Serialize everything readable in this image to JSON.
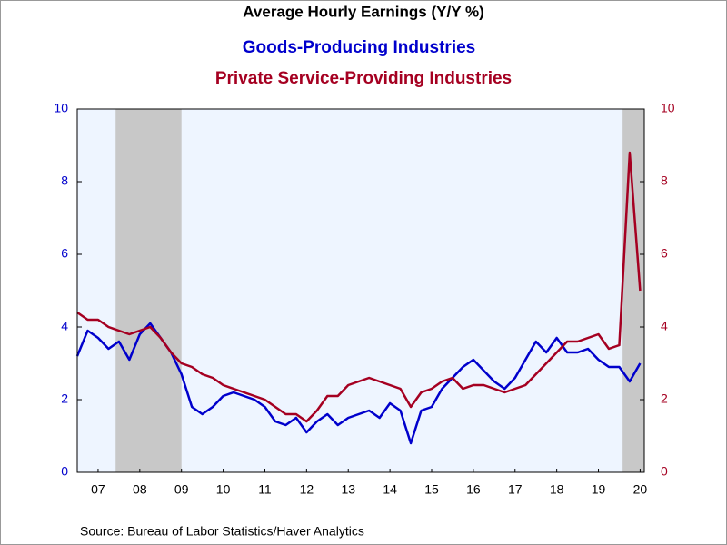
{
  "chart_data": {
    "type": "line",
    "title": "Average Hourly Earnings (Y/Y %)",
    "source": "Source:  Bureau of Labor Statistics/Haver Analytics",
    "x": [
      7,
      7.25,
      7.5,
      7.75,
      8,
      8.25,
      8.5,
      8.75,
      9,
      9.25,
      9.5,
      9.75,
      10,
      10.25,
      10.5,
      10.75,
      11,
      11.25,
      11.5,
      11.75,
      12,
      12.25,
      12.5,
      12.75,
      13,
      13.25,
      13.5,
      13.75,
      14,
      14.25,
      14.5,
      14.75,
      15,
      15.25,
      15.5,
      15.75,
      16,
      16.25,
      16.5,
      16.75,
      17,
      17.25,
      17.5,
      17.75,
      18,
      18.25,
      18.5,
      18.75,
      19,
      19.25,
      19.5,
      19.75,
      20,
      20.25,
      20.5
    ],
    "series": [
      {
        "name": "Goods-Producing Industries",
        "color": "#0000cc",
        "values": [
          3.2,
          3.9,
          3.7,
          3.4,
          3.6,
          3.1,
          3.8,
          4.1,
          3.7,
          3.3,
          2.7,
          1.8,
          1.6,
          1.8,
          2.1,
          2.2,
          2.1,
          2.0,
          1.8,
          1.4,
          1.3,
          1.5,
          1.1,
          1.4,
          1.6,
          1.3,
          1.5,
          1.6,
          1.7,
          1.5,
          1.9,
          1.7,
          0.8,
          1.7,
          1.8,
          2.3,
          2.6,
          2.9,
          3.1,
          2.8,
          2.5,
          2.3,
          2.6,
          3.1,
          3.6,
          3.3,
          3.7,
          3.3,
          3.3,
          3.4,
          3.1,
          2.9,
          2.9,
          2.5,
          3.0
        ]
      },
      {
        "name": "Private Service-Providing Industries",
        "color": "#a50021",
        "axis": "y2",
        "values": [
          4.4,
          4.2,
          4.2,
          4.0,
          3.9,
          3.8,
          3.9,
          4.0,
          3.7,
          3.3,
          3.0,
          2.9,
          2.7,
          2.6,
          2.4,
          2.3,
          2.2,
          2.1,
          2.0,
          1.8,
          1.6,
          1.6,
          1.4,
          1.7,
          2.1,
          2.1,
          2.4,
          2.5,
          2.6,
          2.5,
          2.4,
          2.3,
          1.8,
          2.2,
          2.3,
          2.5,
          2.6,
          2.3,
          2.4,
          2.4,
          2.3,
          2.2,
          2.3,
          2.4,
          2.7,
          3.0,
          3.3,
          3.6,
          3.6,
          3.7,
          3.8,
          3.4,
          3.5,
          8.8,
          5.0
        ]
      }
    ],
    "recessions": [
      [
        7.92,
        9.5
      ],
      [
        20.08,
        20.6
      ]
    ],
    "xlim": [
      7,
      20.6
    ],
    "xticks": [
      {
        "value": 7.5,
        "label": "07"
      },
      {
        "value": 8.5,
        "label": "08"
      },
      {
        "value": 9.5,
        "label": "09"
      },
      {
        "value": 10.5,
        "label": "10"
      },
      {
        "value": 11.5,
        "label": "11"
      },
      {
        "value": 12.5,
        "label": "12"
      },
      {
        "value": 13.5,
        "label": "13"
      },
      {
        "value": 14.5,
        "label": "14"
      },
      {
        "value": 15.5,
        "label": "15"
      },
      {
        "value": 16.5,
        "label": "16"
      },
      {
        "value": 17.5,
        "label": "17"
      },
      {
        "value": 18.5,
        "label": "18"
      },
      {
        "value": 19.5,
        "label": "19"
      },
      {
        "value": 20.5,
        "label": "20"
      }
    ],
    "ylim": [
      0,
      10
    ],
    "yticks": [
      0,
      2,
      4,
      6,
      8,
      10
    ],
    "y2lim": [
      0,
      10
    ],
    "y2ticks": [
      0,
      2,
      4,
      6,
      8,
      10
    ]
  }
}
